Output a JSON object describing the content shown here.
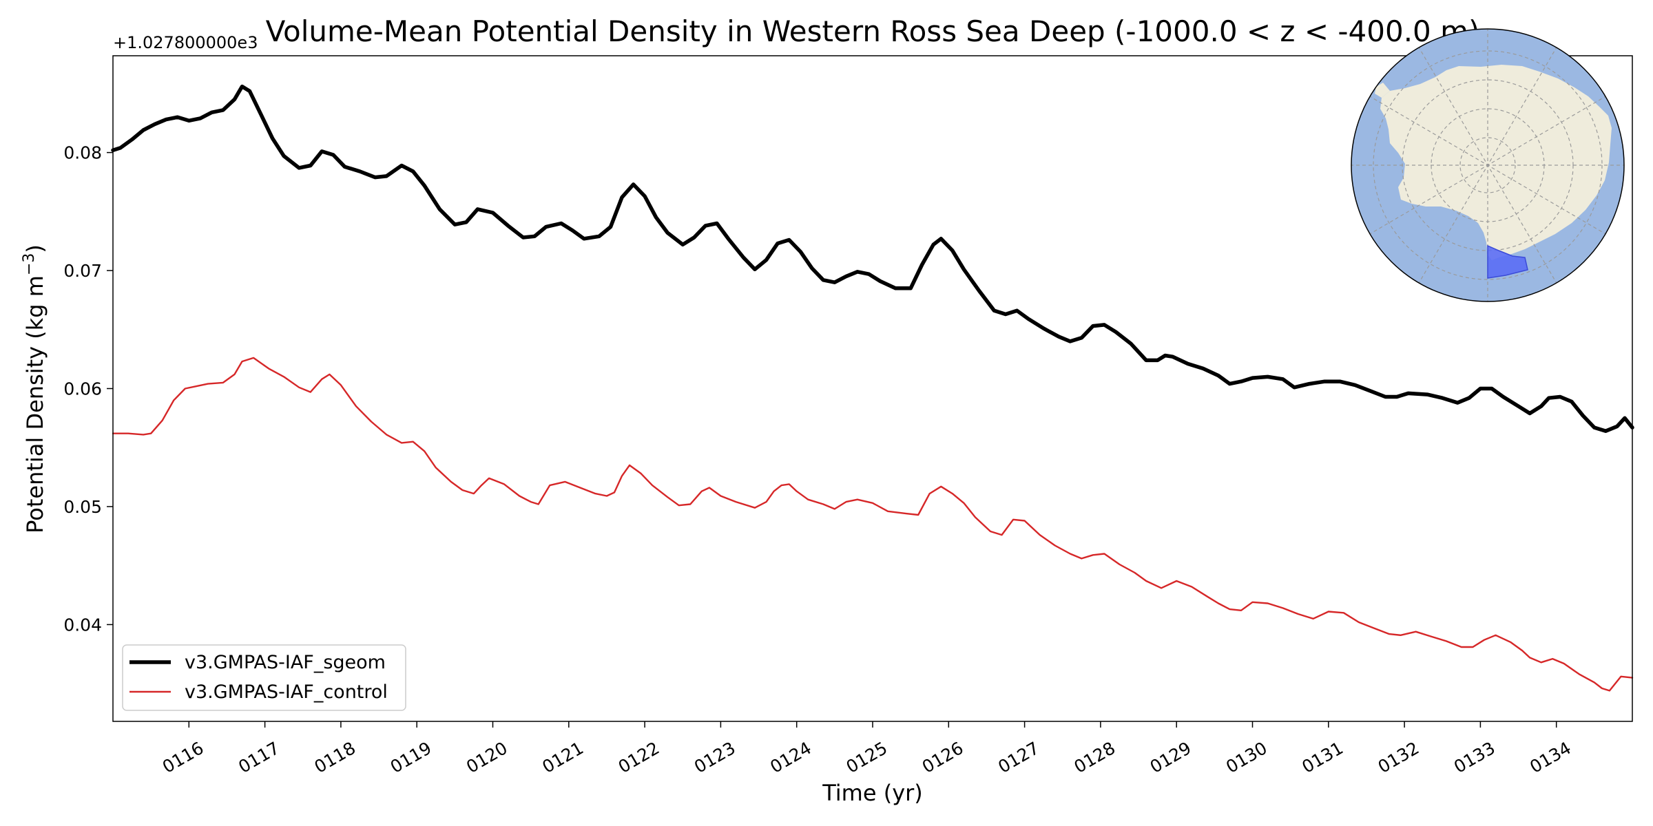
{
  "chart_data": {
    "type": "line",
    "title": "Volume-Mean Potential Density in Western Ross Sea Deep (-1000.0 < z < -400.0 m)",
    "xlabel": "Time (yr)",
    "ylabel": "Potential Density (kg m",
    "ylabel_sup": "−3",
    "ylabel_end": ")",
    "offset_label": "+1.027800000e3",
    "xlim": [
      115.0,
      135.0
    ],
    "ylim": [
      0.0318,
      0.0882
    ],
    "x_ticks": [
      116,
      117,
      118,
      119,
      120,
      121,
      122,
      123,
      124,
      125,
      126,
      127,
      128,
      129,
      130,
      131,
      132,
      133,
      134
    ],
    "x_tick_labels": [
      "0116",
      "0117",
      "0118",
      "0119",
      "0120",
      "0121",
      "0122",
      "0123",
      "0124",
      "0125",
      "0126",
      "0127",
      "0128",
      "0129",
      "0130",
      "0131",
      "0132",
      "0133",
      "0134"
    ],
    "y_ticks": [
      0.04,
      0.05,
      0.06,
      0.07,
      0.08
    ],
    "y_tick_labels": [
      "0.04",
      "0.05",
      "0.06",
      "0.07",
      "0.08"
    ],
    "legend": "lower-left",
    "grid": false,
    "series": [
      {
        "name": "v3.GMPAS-IAF_sgeom",
        "color": "#000000",
        "x": [
          115.0,
          115.1,
          115.25,
          115.4,
          115.55,
          115.7,
          115.85,
          116.0,
          116.15,
          116.3,
          116.45,
          116.6,
          116.7,
          116.8,
          116.95,
          117.1,
          117.25,
          117.45,
          117.6,
          117.75,
          117.9,
          118.05,
          118.25,
          118.45,
          118.6,
          118.8,
          118.95,
          119.1,
          119.3,
          119.5,
          119.65,
          119.8,
          120.0,
          120.2,
          120.4,
          120.55,
          120.7,
          120.9,
          121.05,
          121.2,
          121.4,
          121.55,
          121.7,
          121.85,
          122.0,
          122.15,
          122.3,
          122.5,
          122.65,
          122.8,
          122.95,
          123.1,
          123.3,
          123.45,
          123.6,
          123.75,
          123.9,
          124.05,
          124.2,
          124.35,
          124.5,
          124.65,
          124.8,
          124.95,
          125.1,
          125.3,
          125.5,
          125.65,
          125.8,
          125.9,
          126.05,
          126.2,
          126.4,
          126.6,
          126.75,
          126.9,
          127.05,
          127.25,
          127.45,
          127.6,
          127.75,
          127.9,
          128.05,
          128.2,
          128.4,
          128.6,
          128.75,
          128.85,
          128.95,
          129.15,
          129.35,
          129.55,
          129.7,
          129.85,
          130.0,
          130.2,
          130.4,
          130.55,
          130.75,
          130.95,
          131.15,
          131.35,
          131.55,
          131.75,
          131.9,
          132.05,
          132.3,
          132.5,
          132.7,
          132.85,
          133.0,
          133.15,
          133.3,
          133.5,
          133.65,
          133.8,
          133.9,
          134.05,
          134.2,
          134.35,
          134.5,
          134.65,
          134.8,
          134.9,
          135.0
        ],
        "values": [
          0.0802,
          0.0804,
          0.0811,
          0.0819,
          0.0824,
          0.0828,
          0.083,
          0.0827,
          0.0829,
          0.0834,
          0.0836,
          0.0845,
          0.0856,
          0.0852,
          0.0832,
          0.0812,
          0.0797,
          0.0787,
          0.0789,
          0.0801,
          0.0798,
          0.0788,
          0.0784,
          0.0779,
          0.078,
          0.0789,
          0.0784,
          0.0772,
          0.0752,
          0.0739,
          0.0741,
          0.0752,
          0.0749,
          0.0738,
          0.0728,
          0.0729,
          0.0737,
          0.074,
          0.0734,
          0.0727,
          0.0729,
          0.0737,
          0.0762,
          0.0773,
          0.0763,
          0.0745,
          0.0732,
          0.0722,
          0.0728,
          0.0738,
          0.074,
          0.0727,
          0.0711,
          0.0701,
          0.0709,
          0.0723,
          0.0726,
          0.0716,
          0.0702,
          0.0692,
          0.069,
          0.0695,
          0.0699,
          0.0697,
          0.0691,
          0.0685,
          0.0685,
          0.0705,
          0.0722,
          0.0727,
          0.0717,
          0.0701,
          0.0683,
          0.0666,
          0.0663,
          0.0666,
          0.0659,
          0.0651,
          0.0644,
          0.064,
          0.0643,
          0.0653,
          0.0654,
          0.0648,
          0.0638,
          0.0624,
          0.0624,
          0.0628,
          0.0627,
          0.0621,
          0.0617,
          0.0611,
          0.0604,
          0.0606,
          0.0609,
          0.061,
          0.0608,
          0.0601,
          0.0604,
          0.0606,
          0.0606,
          0.0603,
          0.0598,
          0.0593,
          0.0593,
          0.0596,
          0.0595,
          0.0592,
          0.0588,
          0.0592,
          0.06,
          0.06,
          0.0593,
          0.0585,
          0.0579,
          0.0585,
          0.0592,
          0.0593,
          0.0589,
          0.0577,
          0.0567,
          0.0564,
          0.0568,
          0.0575,
          0.0567
        ]
      },
      {
        "name": "v3.GMPAS-IAF_control",
        "color": "#d62728",
        "x": [
          115.0,
          115.2,
          115.4,
          115.5,
          115.65,
          115.8,
          115.95,
          116.1,
          116.25,
          116.45,
          116.6,
          116.7,
          116.85,
          117.05,
          117.25,
          117.45,
          117.6,
          117.75,
          117.85,
          118.0,
          118.2,
          118.4,
          118.6,
          118.8,
          118.95,
          119.1,
          119.25,
          119.45,
          119.6,
          119.75,
          119.85,
          119.95,
          120.15,
          120.35,
          120.5,
          120.6,
          120.75,
          120.95,
          121.15,
          121.35,
          121.5,
          121.6,
          121.7,
          121.8,
          121.95,
          122.1,
          122.3,
          122.45,
          122.6,
          122.75,
          122.85,
          123.0,
          123.2,
          123.45,
          123.6,
          123.7,
          123.8,
          123.9,
          124.0,
          124.15,
          124.35,
          124.5,
          124.65,
          124.8,
          125.0,
          125.2,
          125.45,
          125.6,
          125.75,
          125.9,
          126.05,
          126.2,
          126.35,
          126.55,
          126.7,
          126.85,
          127.0,
          127.2,
          127.4,
          127.6,
          127.75,
          127.9,
          128.05,
          128.25,
          128.45,
          128.6,
          128.8,
          129.0,
          129.2,
          129.4,
          129.55,
          129.7,
          129.85,
          130.0,
          130.2,
          130.4,
          130.6,
          130.8,
          131.0,
          131.2,
          131.4,
          131.6,
          131.8,
          131.95,
          132.15,
          132.35,
          132.55,
          132.75,
          132.9,
          133.05,
          133.2,
          133.4,
          133.55,
          133.65,
          133.8,
          133.95,
          134.1,
          134.3,
          134.5,
          134.6,
          134.7,
          134.85,
          135.0
        ],
        "values": [
          0.0562,
          0.0562,
          0.0561,
          0.0562,
          0.0573,
          0.059,
          0.06,
          0.0602,
          0.0604,
          0.0605,
          0.0612,
          0.0623,
          0.0626,
          0.0617,
          0.061,
          0.0601,
          0.0597,
          0.0608,
          0.0612,
          0.0603,
          0.0585,
          0.0572,
          0.0561,
          0.0554,
          0.0555,
          0.0547,
          0.0533,
          0.0521,
          0.0514,
          0.0511,
          0.0518,
          0.0524,
          0.0519,
          0.0509,
          0.0504,
          0.0502,
          0.0518,
          0.0521,
          0.0516,
          0.0511,
          0.0509,
          0.0512,
          0.0526,
          0.0535,
          0.0528,
          0.0518,
          0.0508,
          0.0501,
          0.0502,
          0.0513,
          0.0516,
          0.0509,
          0.0504,
          0.0499,
          0.0504,
          0.0513,
          0.0518,
          0.0519,
          0.0513,
          0.0506,
          0.0502,
          0.0498,
          0.0504,
          0.0506,
          0.0503,
          0.0496,
          0.0494,
          0.0493,
          0.0511,
          0.0517,
          0.0511,
          0.0503,
          0.0491,
          0.0479,
          0.0476,
          0.0489,
          0.0488,
          0.0476,
          0.0467,
          0.046,
          0.0456,
          0.0459,
          0.046,
          0.0451,
          0.0444,
          0.0437,
          0.0431,
          0.0437,
          0.0432,
          0.0424,
          0.0418,
          0.0413,
          0.0412,
          0.0419,
          0.0418,
          0.0414,
          0.0409,
          0.0405,
          0.0411,
          0.041,
          0.0402,
          0.0397,
          0.0392,
          0.0391,
          0.0394,
          0.039,
          0.0386,
          0.0381,
          0.0381,
          0.0387,
          0.0391,
          0.0385,
          0.0378,
          0.0372,
          0.0368,
          0.0371,
          0.0367,
          0.0358,
          0.0351,
          0.0346,
          0.0344,
          0.0356,
          0.0355
        ]
      }
    ]
  },
  "inset_map": {
    "icon": "antarctica-region-map-icon",
    "ocean_color": "#9bb8e2",
    "land_color": "#efecdc",
    "region_color": "#5b6ef5",
    "graticule_color": "#9a9a9a"
  }
}
